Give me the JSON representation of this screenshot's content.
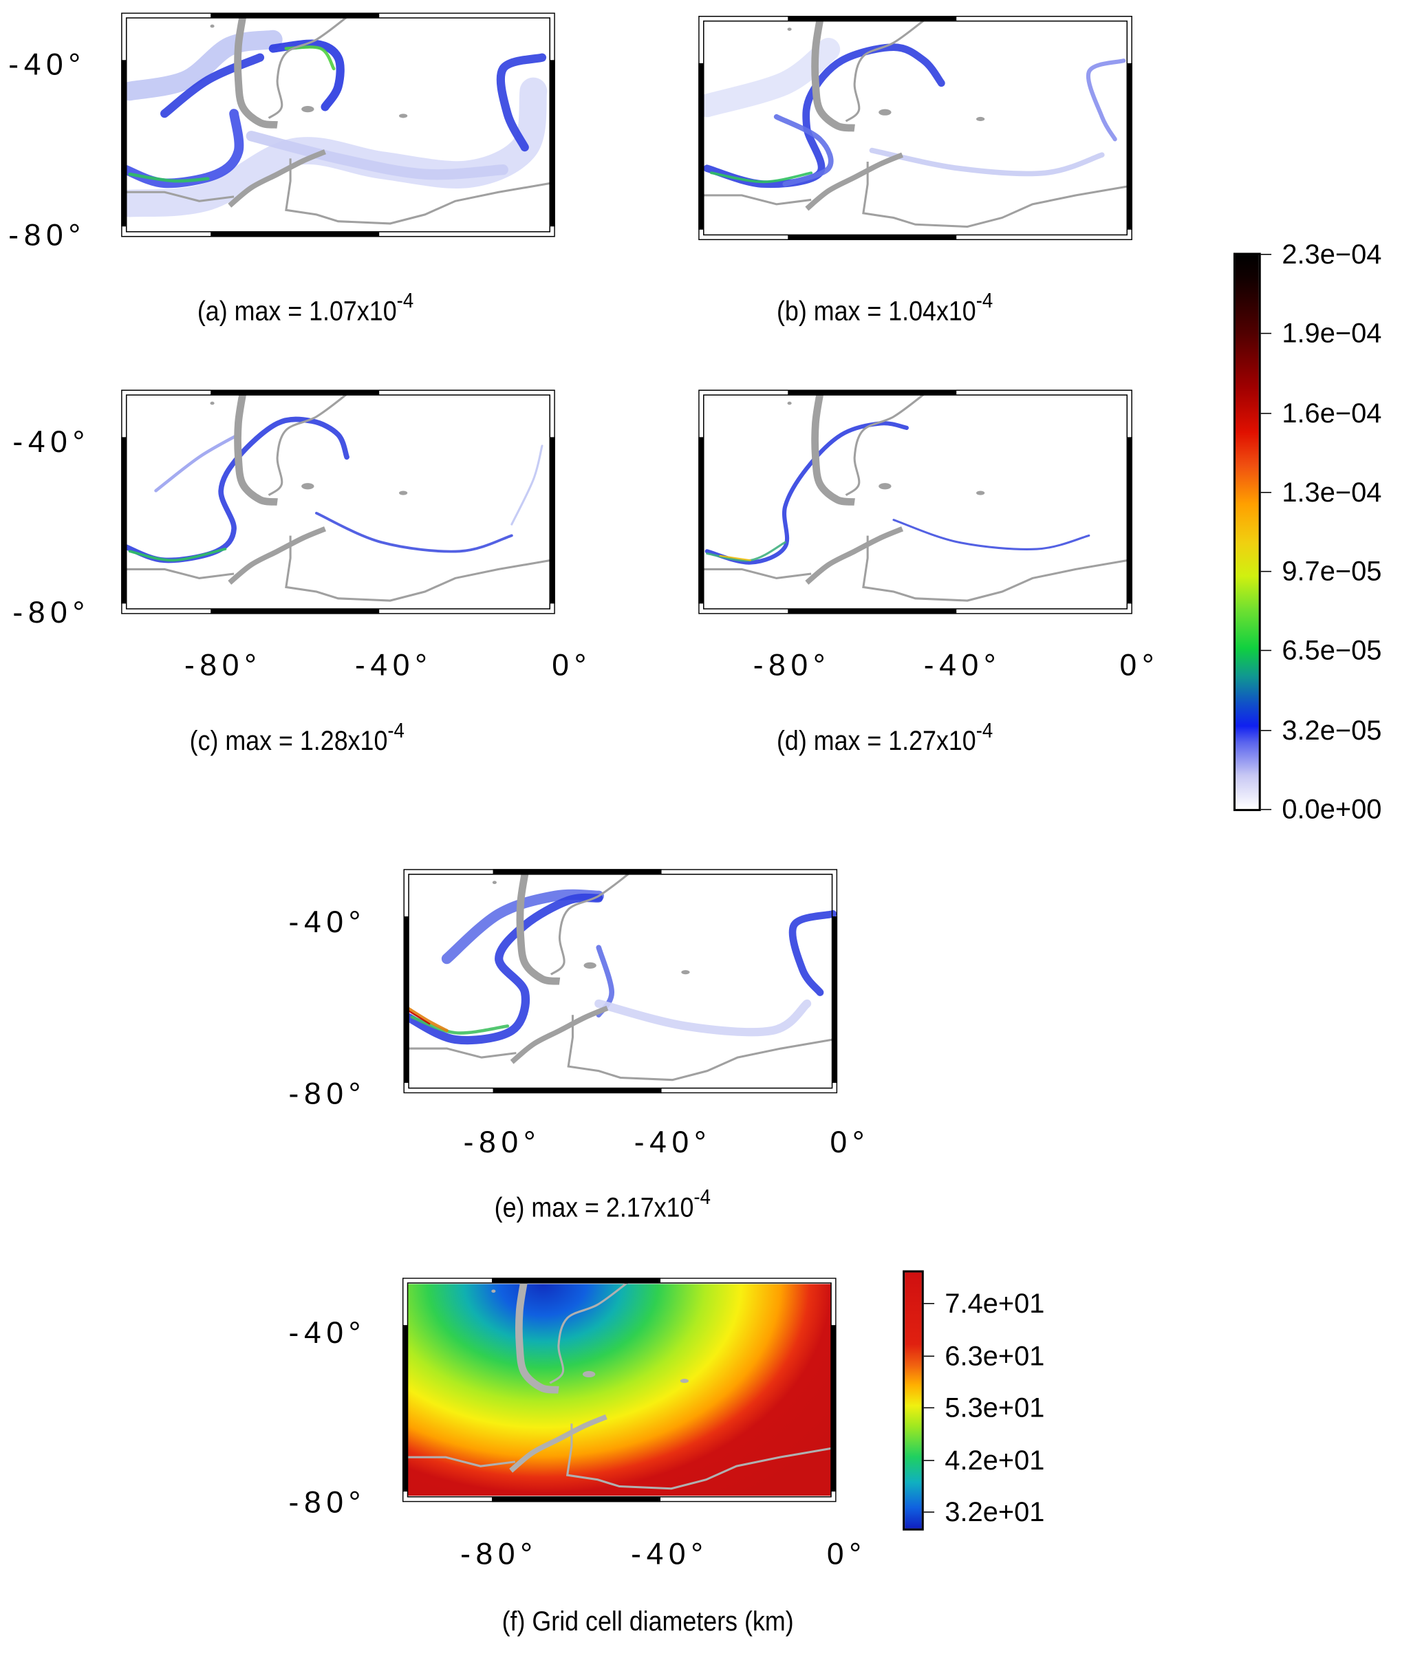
{
  "figure": {
    "panels": [
      {
        "id": "a",
        "caption_prefix": "(a) max = 1.07x10",
        "caption_exp": "-4",
        "ylabels": [
          "-40°",
          "-80°"
        ],
        "xlabels": []
      },
      {
        "id": "b",
        "caption_prefix": "(b) max = 1.04x10",
        "caption_exp": "-4",
        "ylabels": [],
        "xlabels": []
      },
      {
        "id": "c",
        "caption_prefix": "(c) max = 1.28x10",
        "caption_exp": "-4",
        "ylabels": [
          "-40°",
          "-80°"
        ],
        "xlabels": [
          "-80°",
          "-40°",
          "0°"
        ]
      },
      {
        "id": "d",
        "caption_prefix": "(d) max = 1.27x10",
        "caption_exp": "-4",
        "ylabels": [],
        "xlabels": [
          "-80°",
          "-40°",
          "0°"
        ]
      },
      {
        "id": "e",
        "caption_prefix": "(e) max = 2.17x10",
        "caption_exp": "-4",
        "ylabels": [
          "-40°",
          "-80°"
        ],
        "xlabels": [
          "-80°",
          "-40°",
          "0°"
        ]
      },
      {
        "id": "f",
        "caption_prefix": "(f) Grid cell diameters (km)",
        "caption_exp": "",
        "ylabels": [
          "-40°",
          "-80°"
        ],
        "xlabels": [
          "-80°",
          "-40°",
          "0°"
        ]
      }
    ],
    "colorbar_concentration": {
      "ticks": [
        "2.3e−04",
        "1.9e−04",
        "1.6e−04",
        "1.3e−04",
        "9.7e−05",
        "6.5e−05",
        "3.2e−05",
        "0.0e+00"
      ],
      "range": [
        0,
        0.00023
      ]
    },
    "colorbar_diameter": {
      "ticks": [
        "7.4e+01",
        "6.3e+01",
        "5.3e+01",
        "4.2e+01",
        "3.2e+01"
      ]
    },
    "colors": {
      "land": "#a0a0a0",
      "low": "#ffffff",
      "plume": "#2030e0",
      "high": "#000000"
    }
  }
}
